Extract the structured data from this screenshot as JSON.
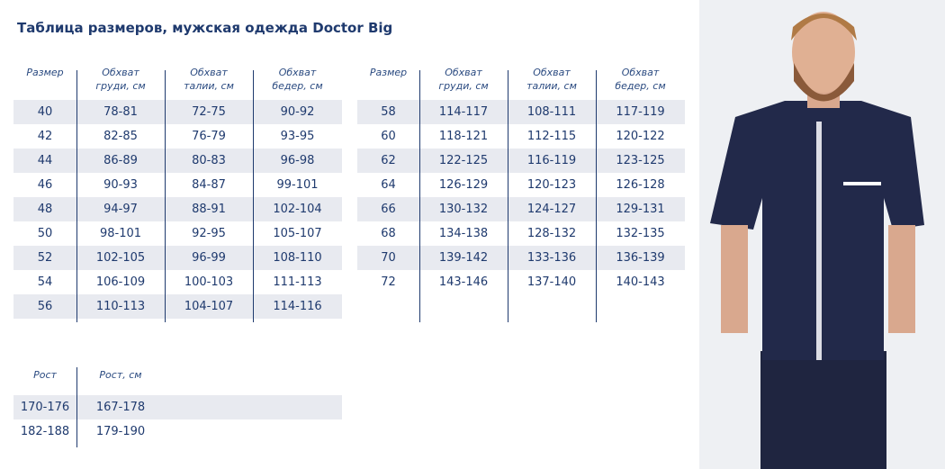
{
  "header": {
    "title": "Таблица размеров, мужская одежда Doctor Big"
  },
  "size_table_1": {
    "columns": [
      "Размер",
      "Обхват груди, см",
      "Обхват талии, см",
      "Обхват бедер, см"
    ],
    "rows": [
      [
        "40",
        "78-81",
        "72-75",
        "90-92"
      ],
      [
        "42",
        "82-85",
        "76-79",
        "93-95"
      ],
      [
        "44",
        "86-89",
        "80-83",
        "96-98"
      ],
      [
        "46",
        "90-93",
        "84-87",
        "99-101"
      ],
      [
        "48",
        "94-97",
        "88-91",
        "102-104"
      ],
      [
        "50",
        "98-101",
        "92-95",
        "105-107"
      ],
      [
        "52",
        "102-105",
        "96-99",
        "108-110"
      ],
      [
        "54",
        "106-109",
        "100-103",
        "111-113"
      ],
      [
        "56",
        "110-113",
        "104-107",
        "114-116"
      ]
    ]
  },
  "size_table_2": {
    "columns": [
      "Размер",
      "Обхват груди, см",
      "Обхват талии, см",
      "Обхват бедер, см"
    ],
    "rows": [
      [
        "58",
        "114-117",
        "108-111",
        "117-119"
      ],
      [
        "60",
        "118-121",
        "112-115",
        "120-122"
      ],
      [
        "62",
        "122-125",
        "116-119",
        "123-125"
      ],
      [
        "64",
        "126-129",
        "120-123",
        "126-128"
      ],
      [
        "66",
        "130-132",
        "124-127",
        "129-131"
      ],
      [
        "68",
        "134-138",
        "128-132",
        "132-135"
      ],
      [
        "70",
        "139-142",
        "133-136",
        "136-139"
      ],
      [
        "72",
        "143-146",
        "137-140",
        "140-143"
      ]
    ]
  },
  "height_table": {
    "columns": [
      "Рост",
      "Рост, см"
    ],
    "rows": [
      [
        "170-176",
        "167-178"
      ],
      [
        "182-188",
        "179-190"
      ]
    ]
  }
}
